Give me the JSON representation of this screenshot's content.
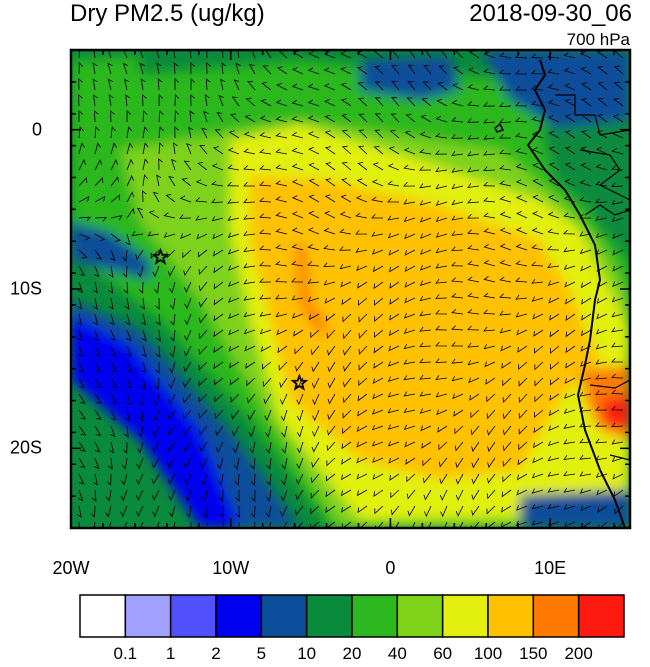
{
  "header": {
    "title": "Dry PM2.5 (ug/kg)",
    "datetime": "2018-09-30_06",
    "level": "700 hPa"
  },
  "axes": {
    "lat_labels": [
      {
        "text": "0",
        "lat": 0
      },
      {
        "text": "10S",
        "lat": -10
      },
      {
        "text": "20S",
        "lat": -20
      }
    ],
    "lon_labels": [
      {
        "text": "20W",
        "lon": -20
      },
      {
        "text": "10W",
        "lon": -10
      },
      {
        "text": "0",
        "lon": 0
      },
      {
        "text": "10E",
        "lon": 10
      }
    ],
    "lon_range": [
      -20,
      15
    ],
    "lat_range": [
      -25,
      5
    ]
  },
  "markers": [
    {
      "name": "station-star-1",
      "lon": -14.4,
      "lat": -8.0
    },
    {
      "name": "station-star-2",
      "lon": -5.7,
      "lat": -15.9
    }
  ],
  "colorbar": {
    "colors": [
      "#ffffff",
      "#a0a0ff",
      "#5050ff",
      "#0000f0",
      "#0a4d9a",
      "#0a8a3c",
      "#2cb81e",
      "#7ed21a",
      "#e2f010",
      "#ffc100",
      "#ff7a00",
      "#ff1a10"
    ],
    "labels": [
      "0.1",
      "1",
      "2",
      "5",
      "10",
      "20",
      "40",
      "60",
      "100",
      "150",
      "200"
    ]
  }
}
